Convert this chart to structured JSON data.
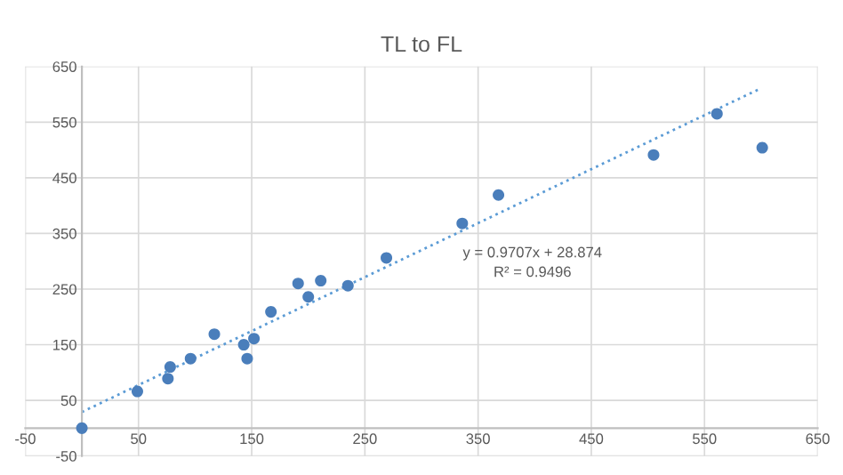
{
  "chart_data": {
    "type": "scatter",
    "title": "TL to FL",
    "series": [
      {
        "color": "#4a7ebb",
        "marker": "circle",
        "x": [
          0,
          49,
          76,
          78,
          96,
          117,
          143,
          146,
          152,
          167,
          191,
          200,
          211,
          235,
          269,
          336,
          368,
          505,
          561,
          601
        ],
        "values": [
          0,
          66,
          89,
          110,
          125,
          169,
          150,
          125,
          161,
          209,
          260,
          236,
          265,
          256,
          306,
          368,
          419,
          491,
          565,
          504
        ]
      },
      {
        "type": "line",
        "color": "#5b9bd5",
        "line_style": "dotted",
        "x": [
          0,
          600
        ],
        "values": [
          29,
          611
        ]
      }
    ],
    "xlim": [
      -50,
      650
    ],
    "ylim": [
      -50,
      650
    ],
    "xticks": [
      -50,
      50,
      150,
      250,
      350,
      450,
      550,
      650
    ],
    "yticks": [
      -50,
      50,
      150,
      250,
      350,
      450,
      550,
      650
    ],
    "grid": true,
    "annotations": [
      "y = 0.9707x + 28.874",
      "R² = 0.9496"
    ]
  }
}
